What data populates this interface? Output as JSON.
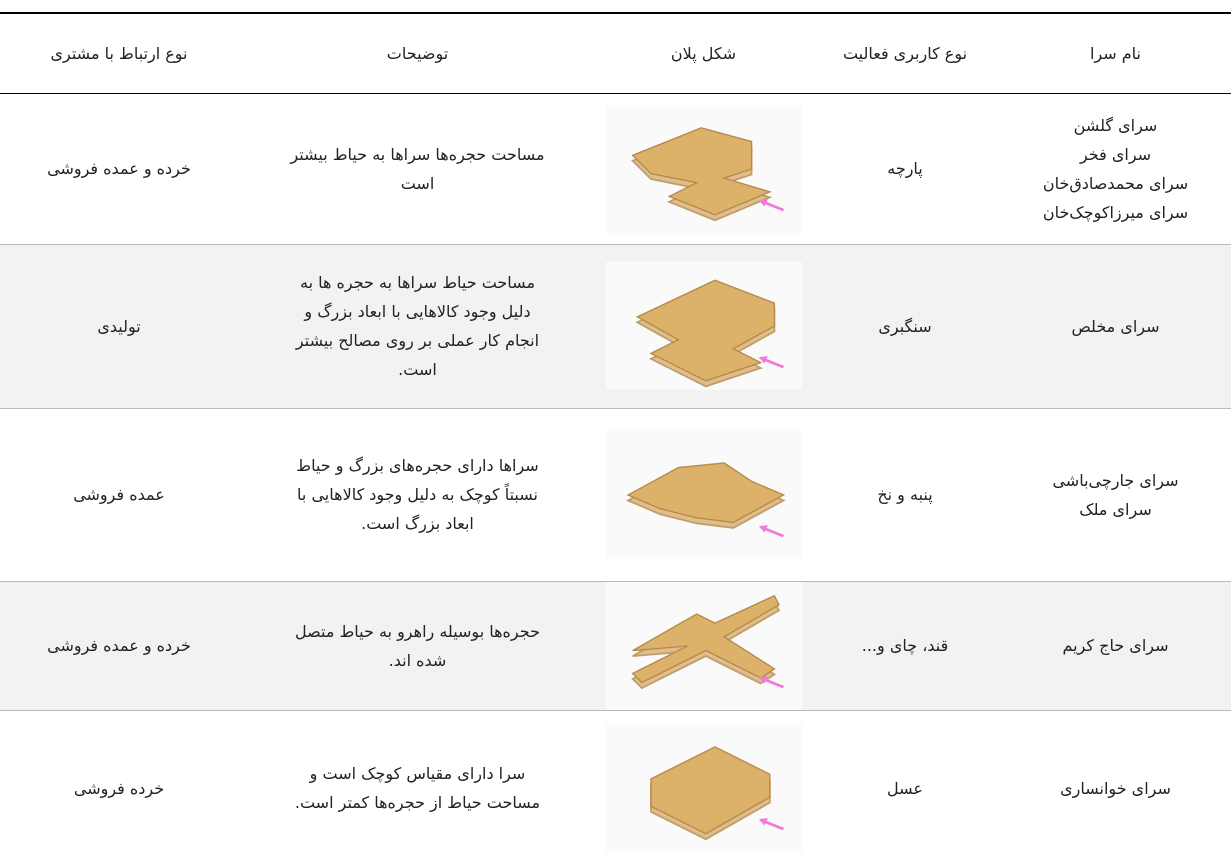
{
  "table": {
    "headers": [
      "نام سرا",
      "نوع کاربری فعالیت",
      "شکل پلان",
      "توضیحات",
      "نوع ارتباط با مشتری"
    ],
    "rows": [
      {
        "names": [
          "سرای گلشن",
          "سرای فخر",
          "سرای محمدصادق‌خان",
          "سرای میرزاکوچک‌خان"
        ],
        "activity": "پارچه",
        "description": [
          "مساحت حجره‌ها سراها به حیاط بیشتر",
          "است"
        ],
        "relation": "خرده و عمده فروشی"
      },
      {
        "names": [
          "سرای مخلص"
        ],
        "activity": "سنگبری",
        "description": [
          "مساحت حیاط سراها به حجره ها به",
          "دلیل وجود کالاهایی با ابعاد بزرگ و",
          "انجام کار عملی بر روی مصالح بیشتر",
          "است."
        ],
        "relation": "تولیدی"
      },
      {
        "names": [
          "سرای جارچی‌باشی",
          "سرای ملک"
        ],
        "activity": "پنبه و نخ",
        "description": [
          "سراها دارای حجره‌های بزرگ و حیاط",
          "نسبتاً کوچک به دلیل وجود کالاهایی با",
          "ابعاد بزرگ است."
        ],
        "relation": "عمده فروشی"
      },
      {
        "names": [
          "سرای حاج کریم"
        ],
        "activity": "قند، چای و...",
        "description": [
          "حجره‌ها بوسیله راهرو به حیاط متصل",
          "شده اند."
        ],
        "relation": "خرده و عمده فروشی"
      },
      {
        "names": [
          "سرای خوانساری"
        ],
        "activity": "عسل",
        "description": [
          "سرا دارای مقیاس کوچک است و",
          "مساحت حیاط از حجره‌ها کمتر است."
        ],
        "relation": "خرده فروشی"
      }
    ]
  }
}
